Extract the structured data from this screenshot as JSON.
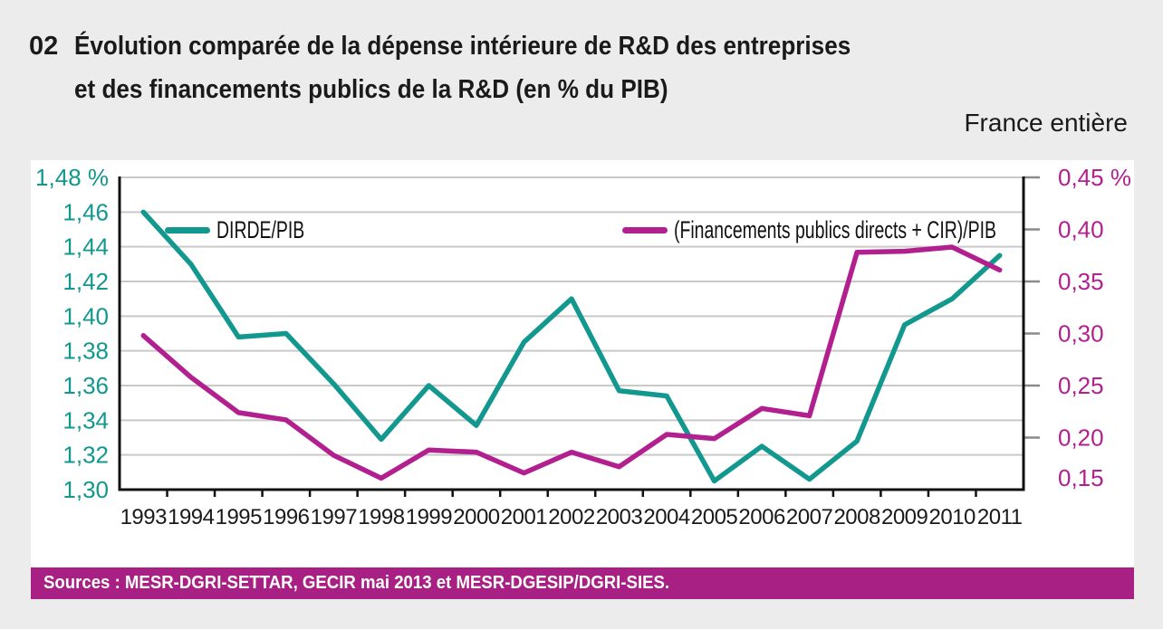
{
  "header": {
    "figure_number": "02",
    "title_line1": "Évolution comparée de la dépense intérieure de R&D des entreprises",
    "title_line2": "et des financements publics de la R&D (en % du PIB)",
    "scope": "France entière"
  },
  "footer": {
    "sources": "Sources : MESR-DGRI-SETTAR, GECIR mai 2013 et MESR-DGESIP/DGRI-SIES."
  },
  "colors": {
    "teal": "#12988e",
    "magenta": "#b22090",
    "sources_bar_bg": "#a82083",
    "sources_text": "#ffffff",
    "grid": "#c9c9c9",
    "axis": "#111111",
    "right_tick": "#8a8a8a",
    "x_label": "#1a1a1a",
    "page_bg": "#ececec",
    "panel_bg": "#ffffff"
  },
  "chart_data": {
    "type": "line",
    "title": "Évolution comparée de la dépense intérieure de R&D des entreprises et des financements publics de la R&D (en % du PIB)",
    "x": [
      "1993",
      "1994",
      "1995",
      "1996",
      "1997",
      "1998",
      "1999",
      "2000",
      "2001",
      "2002",
      "2003",
      "2004",
      "2005",
      "2006",
      "2007",
      "2008",
      "2009",
      "2010",
      "2011"
    ],
    "series": [
      {
        "name": "DIRDE/PIB",
        "axis": "left",
        "color": "#12988e",
        "values": [
          1.46,
          1.43,
          1.388,
          1.39,
          1.361,
          1.329,
          1.36,
          1.337,
          1.385,
          1.41,
          1.357,
          1.354,
          1.305,
          1.325,
          1.306,
          1.328,
          1.395,
          1.41,
          1.435
        ]
      },
      {
        "name": "(Financements publics directs + CIR)/PIB",
        "axis": "right",
        "color": "#b22090",
        "values": [
          0.298,
          0.258,
          0.224,
          0.217,
          0.183,
          0.161,
          0.188,
          0.186,
          0.166,
          0.186,
          0.172,
          0.203,
          0.199,
          0.228,
          0.221,
          0.378,
          0.379,
          0.383,
          0.361
        ]
      }
    ],
    "left_axis": {
      "min": 1.3,
      "max": 1.48,
      "tick_values": [
        1.48,
        1.46,
        1.44,
        1.42,
        1.4,
        1.38,
        1.36,
        1.34,
        1.32,
        1.3
      ],
      "tick_labels": [
        "1,48 %",
        "1,46",
        "1,44",
        "1,42",
        "1,40",
        "1,38",
        "1,36",
        "1,34",
        "1,32",
        "1,30"
      ]
    },
    "right_axis": {
      "min": 0.15,
      "max": 0.45,
      "tick_values": [
        0.45,
        0.4,
        0.35,
        0.3,
        0.25,
        0.2,
        0.15
      ],
      "tick_labels": [
        "0,45 %",
        "0,40",
        "0,35",
        "0,30",
        "0,25",
        "0,20",
        "0,15"
      ]
    },
    "grid": true,
    "legend_position": "top-inside"
  }
}
